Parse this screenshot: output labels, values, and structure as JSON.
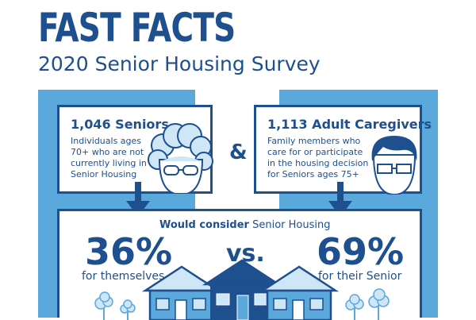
{
  "header": {
    "title": "FAST FACTS",
    "subtitle": "2020 Senior Housing Survey"
  },
  "seniors": {
    "title": "1,046 Seniors",
    "description": "Individuals ages 70+ who are not currently living in Senior Housing",
    "icon": "grandmother-face-icon"
  },
  "connector": "&",
  "caregivers": {
    "title": "1,113 Adult Caregivers",
    "description": "Family members who care for or participate in the housing decision for Seniors ages 75+",
    "icon": "man-face-icon"
  },
  "result": {
    "heading_bold": "Would consider",
    "heading_rest": " Senior Housing",
    "left_value": "36%",
    "left_label": "for themselves",
    "vs": "vs.",
    "right_value": "69%",
    "right_label": "for their Senior"
  },
  "colors": {
    "navy": "#1e4f8f",
    "light_blue": "#5aa8dc",
    "pale_blue": "#cfe6f6"
  }
}
